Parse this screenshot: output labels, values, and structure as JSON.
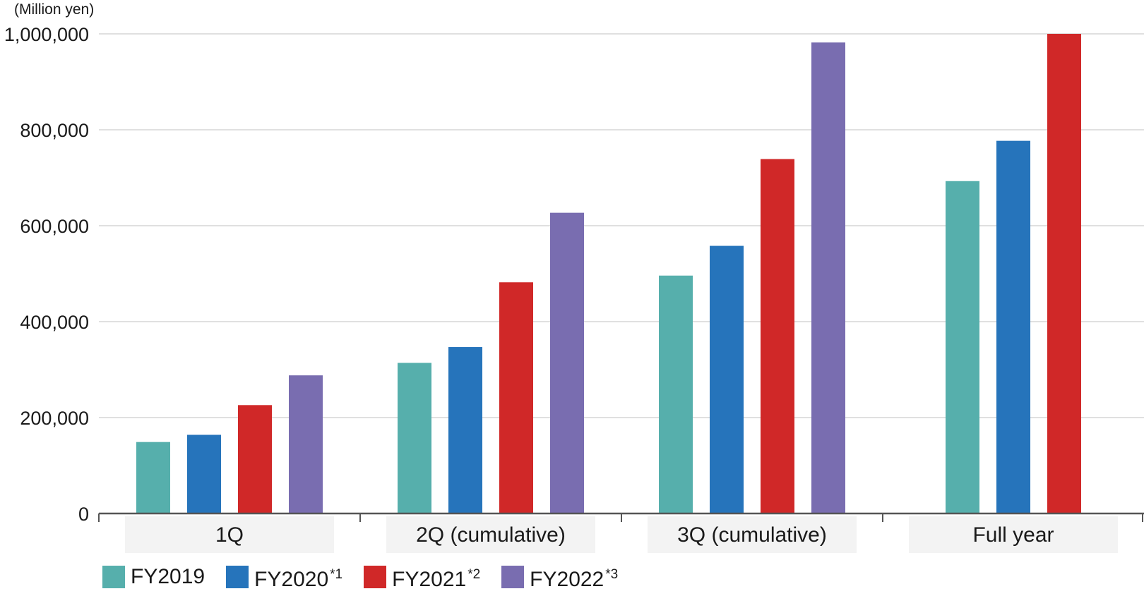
{
  "chart_data": {
    "type": "bar",
    "unit_label": "(Million yen)",
    "categories": [
      "1Q",
      "2Q (cumulative)",
      "3Q (cumulative)",
      "Full year"
    ],
    "series": [
      {
        "name": "FY2019",
        "note": "",
        "color": "#56afac",
        "values": [
          149000,
          314000,
          496000,
          693000
        ]
      },
      {
        "name": "FY2020",
        "note": "*1",
        "color": "#2674bb",
        "values": [
          164000,
          347000,
          558000,
          777000
        ]
      },
      {
        "name": "FY2021",
        "note": "*2",
        "color": "#d02828",
        "values": [
          226000,
          482000,
          739000,
          1000000
        ]
      },
      {
        "name": "FY2022",
        "note": "*3",
        "color": "#796db0",
        "values": [
          288000,
          627000,
          982000,
          null
        ]
      }
    ],
    "ylim": [
      0,
      1000000
    ],
    "yticks": [
      0,
      200000,
      400000,
      600000,
      800000,
      1000000
    ],
    "ytick_labels": [
      "0",
      "200,000",
      "400,000",
      "600,000",
      "800,000",
      "1,000,000"
    ],
    "grid": true,
    "legend_position": "bottom-left"
  }
}
